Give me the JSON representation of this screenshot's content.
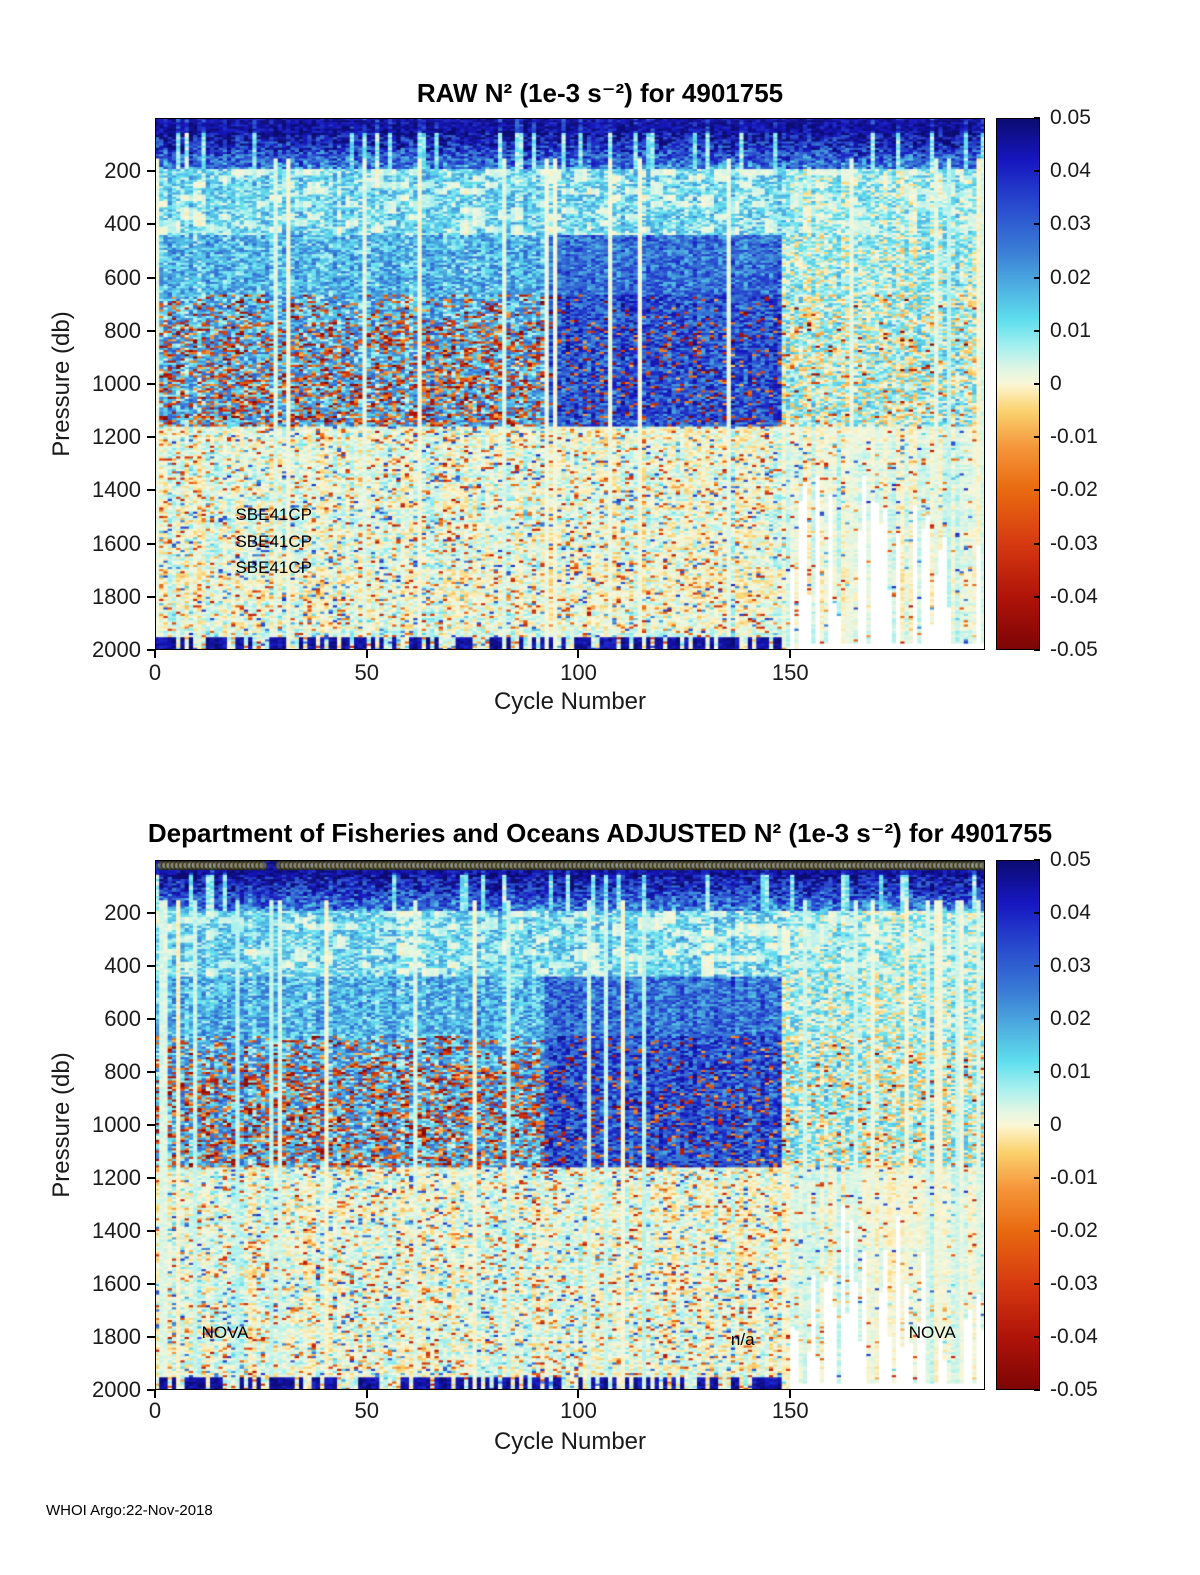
{
  "page": {
    "background": "#ffffff",
    "footer": "WHOI Argo:22-Nov-2018"
  },
  "colormap": {
    "stops": [
      {
        "v": -0.05,
        "color": "#7d0505"
      },
      {
        "v": -0.04,
        "color": "#b01409"
      },
      {
        "v": -0.03,
        "color": "#d63a10"
      },
      {
        "v": -0.02,
        "color": "#e96a10"
      },
      {
        "v": -0.012,
        "color": "#f5953a"
      },
      {
        "v": -0.005,
        "color": "#fbd36f"
      },
      {
        "v": -0.001,
        "color": "#fdf0c0"
      },
      {
        "v": 0.0,
        "color": "#fbf6d8"
      },
      {
        "v": 0.003,
        "color": "#def6e4"
      },
      {
        "v": 0.007,
        "color": "#a5f0f0"
      },
      {
        "v": 0.012,
        "color": "#5fdfee"
      },
      {
        "v": 0.018,
        "color": "#4fb2e2"
      },
      {
        "v": 0.025,
        "color": "#3a7ed6"
      },
      {
        "v": 0.033,
        "color": "#2a4ecf"
      },
      {
        "v": 0.042,
        "color": "#1717c0"
      },
      {
        "v": 0.05,
        "color": "#0c0c72"
      }
    ]
  },
  "chart_data": [
    {
      "type": "heatmap",
      "title": "RAW N² (1e-3 s⁻²) for 4901755",
      "xlabel": "Cycle Number",
      "ylabel": "Pressure (db)",
      "x_range": [
        0,
        196
      ],
      "x_ticks": [
        0,
        50,
        100,
        150
      ],
      "y_range": [
        0,
        2000
      ],
      "y_ticks": [
        200,
        400,
        600,
        800,
        1000,
        1200,
        1400,
        1600,
        1800,
        2000
      ],
      "value_range": [
        -0.05,
        0.05
      ],
      "colorbar_ticks": [
        0.05,
        0.04,
        0.03,
        0.02,
        0.01,
        0,
        -0.01,
        -0.02,
        -0.03,
        -0.04,
        -0.05
      ],
      "annotations": [
        {
          "text": "SBE41CP",
          "cycle": 19,
          "pressure": 1497
        },
        {
          "text": "SBE41CP",
          "cycle": 19,
          "pressure": 1597
        },
        {
          "text": "SBE41CP",
          "cycle": 19,
          "pressure": 1697
        }
      ],
      "markers": null,
      "seed": 1,
      "pattern_notes": "High N2 (dark navy) in upper ~200 db for all cycles; blue/cyan 200-700 db; noisy 700-1200 db band mixing blue with red/orange negative speckles, strongest cycles 0-90; large dark-blue patch cycles ~95-145 above ~1150 db; pale cream/cyan weak stratification below ~1200 db; paler field and white (missing) vertical gaps below ~1300 db for cycles >150; dark-blue strip near 2000 db for cycles <148."
    },
    {
      "type": "heatmap",
      "title": "Department of Fisheries and Oceans  ADJUSTED N² (1e-3 s⁻²) for 4901755",
      "xlabel": "Cycle Number",
      "ylabel": "Pressure (db)",
      "x_range": [
        0,
        196
      ],
      "x_ticks": [
        0,
        50,
        100,
        150
      ],
      "y_range": [
        0,
        2000
      ],
      "y_ticks": [
        200,
        400,
        600,
        800,
        1000,
        1200,
        1400,
        1600,
        1800,
        2000
      ],
      "value_range": [
        -0.05,
        0.05
      ],
      "colorbar_ticks": [
        0.05,
        0.04,
        0.03,
        0.02,
        0.01,
        0,
        -0.01,
        -0.02,
        -0.03,
        -0.04,
        -0.05
      ],
      "annotations": [
        {
          "text": "NOVA",
          "cycle": 11,
          "pressure": 1790
        },
        {
          "text": "n/a",
          "cycle": 136,
          "pressure": 1815
        },
        {
          "text": "NOVA",
          "cycle": 178,
          "pressure": 1790
        }
      ],
      "markers": {
        "symbol": "circle-outline",
        "start": 1,
        "end": 195,
        "gaps": [
          26,
          27,
          28
        ],
        "position": "top-edge"
      },
      "seed": 2,
      "pattern_notes": "Adjusted field nearly identical to raw; row of open circle cycle markers along the top edge of the axes with a short gap near cycle 27."
    }
  ],
  "icons": {
    "cycle-marker": "circle-outline"
  }
}
